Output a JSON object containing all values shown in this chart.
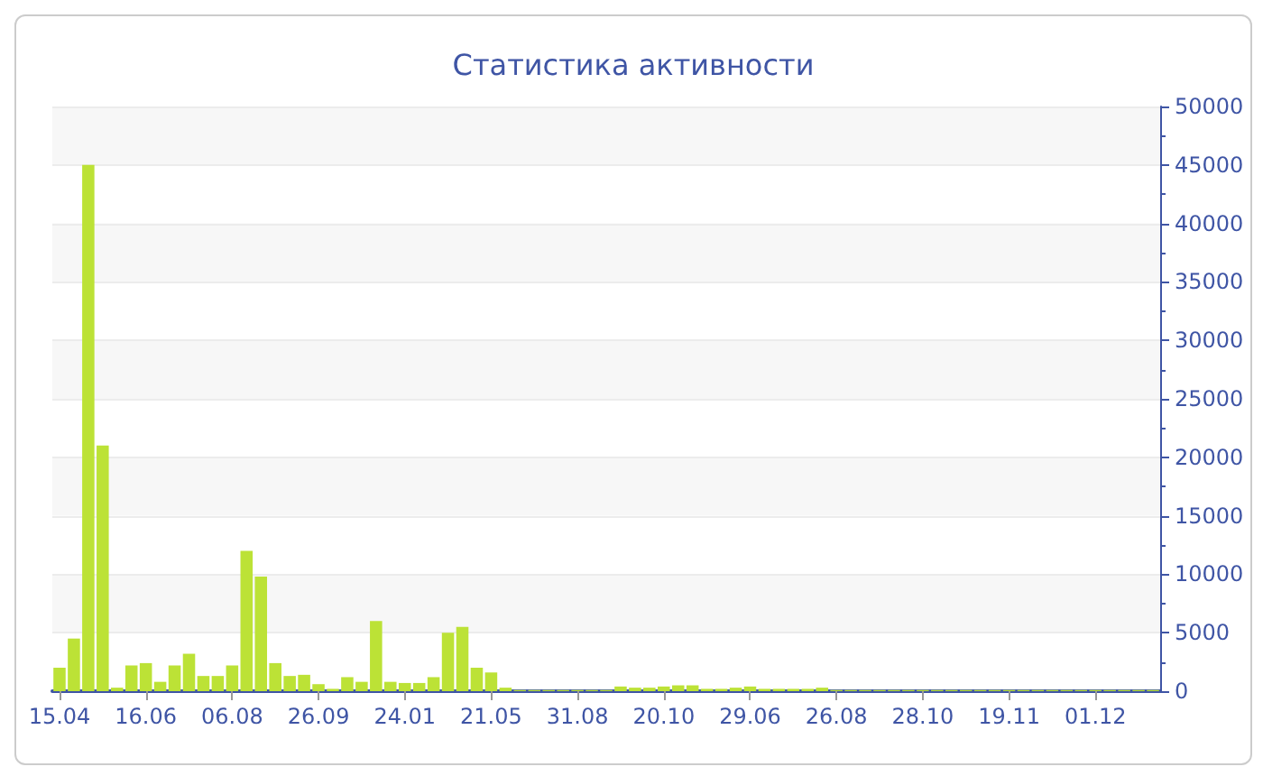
{
  "chart_data": {
    "type": "bar",
    "title": "Статистика активности",
    "categories": [
      "15.04",
      null,
      null,
      null,
      null,
      null,
      "16.06",
      null,
      null,
      null,
      null,
      null,
      "06.08",
      null,
      null,
      null,
      null,
      null,
      "26.09",
      null,
      null,
      null,
      null,
      null,
      "24.01",
      null,
      null,
      null,
      null,
      null,
      "21.05",
      null,
      null,
      null,
      null,
      null,
      "31.08",
      null,
      null,
      null,
      null,
      null,
      "20.10",
      null,
      null,
      null,
      null,
      null,
      "29.06",
      null,
      null,
      null,
      null,
      null,
      "26.08",
      null,
      null,
      null,
      null,
      null,
      "28.10",
      null,
      null,
      null,
      null,
      null,
      "19.11",
      null,
      null,
      null,
      null,
      null,
      "01.12",
      null,
      null,
      null,
      null
    ],
    "values": [
      2000,
      4500,
      45000,
      21000,
      300,
      2200,
      2400,
      800,
      2200,
      3200,
      1300,
      1300,
      2200,
      12000,
      9800,
      2400,
      1300,
      1400,
      600,
      200,
      1200,
      800,
      6000,
      800,
      700,
      700,
      1200,
      5000,
      5500,
      2000,
      1600,
      300,
      100,
      100,
      100,
      100,
      100,
      100,
      100,
      400,
      300,
      300,
      400,
      500,
      500,
      200,
      200,
      300,
      400,
      200,
      200,
      200,
      200,
      300,
      100,
      100,
      100,
      100,
      100,
      100,
      100,
      100,
      100,
      100,
      100,
      100,
      100,
      100,
      100,
      100,
      100,
      100,
      100,
      100,
      100,
      100,
      100
    ],
    "color": "#bce236",
    "ylim": [
      0,
      50000
    ],
    "yticks": [
      0,
      5000,
      10000,
      15000,
      20000,
      25000,
      30000,
      35000,
      40000,
      45000,
      50000
    ],
    "grid": true
  }
}
